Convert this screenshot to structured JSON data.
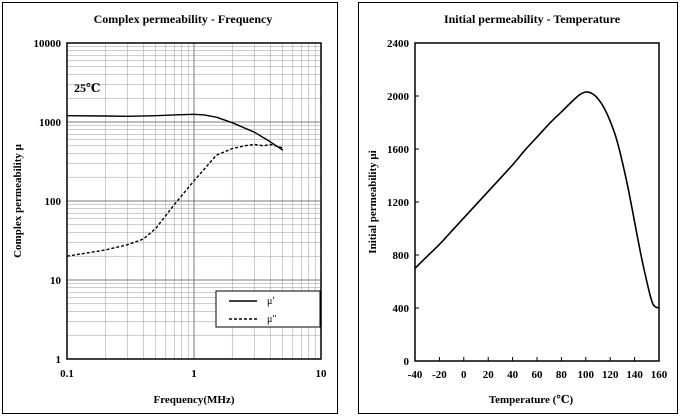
{
  "chart_data": [
    {
      "type": "line",
      "title": "Complex permeability - Frequency",
      "xlabel": "Frequency(MHz)",
      "ylabel": "Complex permeability μ",
      "x_scale": "log",
      "y_scale": "log",
      "xlim": [
        0.1,
        10
      ],
      "ylim": [
        1,
        10000
      ],
      "x_ticks": [
        "0.1",
        "1",
        "10"
      ],
      "x_tick_values": [
        0.1,
        1,
        10
      ],
      "y_ticks": [
        "1",
        "10",
        "100",
        "1000",
        "10000"
      ],
      "y_tick_values": [
        1,
        10,
        100,
        1000,
        10000
      ],
      "grid": true,
      "annotation": "25℃",
      "legend_position": "bottom-right",
      "series": [
        {
          "name": "μ′",
          "style": "solid",
          "x": [
            0.1,
            0.2,
            0.3,
            0.5,
            0.7,
            1.0,
            1.2,
            1.5,
            2.0,
            3.0,
            4.0,
            5.0
          ],
          "y": [
            1200,
            1190,
            1180,
            1200,
            1230,
            1250,
            1230,
            1150,
            980,
            740,
            560,
            440
          ]
        },
        {
          "name": "μ″",
          "style": "dashed",
          "x": [
            0.1,
            0.2,
            0.3,
            0.4,
            0.5,
            0.7,
            1.0,
            1.5,
            2.0,
            2.5,
            3.0,
            3.5,
            4.0,
            5.0
          ],
          "y": [
            20,
            24,
            28,
            33,
            45,
            90,
            180,
            380,
            460,
            500,
            520,
            500,
            520,
            470
          ]
        }
      ]
    },
    {
      "type": "line",
      "title": "Initial permeability - Temperature",
      "xlabel": "Temperature (℃)",
      "ylabel": "Initial permeability μi",
      "xlim": [
        -40,
        160
      ],
      "ylim": [
        0,
        2400
      ],
      "x_ticks": [
        "-40",
        "-20",
        "0",
        "20",
        "40",
        "60",
        "80",
        "100",
        "120",
        "140",
        "160"
      ],
      "x_tick_values": [
        -40,
        -20,
        0,
        20,
        40,
        60,
        80,
        100,
        120,
        140,
        160
      ],
      "y_ticks": [
        "0",
        "400",
        "800",
        "1200",
        "1600",
        "2000",
        "2400"
      ],
      "y_tick_values": [
        0,
        400,
        800,
        1200,
        1600,
        2000,
        2400
      ],
      "grid": false,
      "series": [
        {
          "style": "solid",
          "x": [
            -40,
            -30,
            -20,
            -10,
            0,
            10,
            20,
            30,
            40,
            50,
            60,
            70,
            80,
            90,
            95,
            100,
            105,
            110,
            115,
            120,
            125,
            130,
            135,
            140,
            145,
            150,
            155,
            160
          ],
          "y": [
            700,
            790,
            880,
            980,
            1080,
            1180,
            1280,
            1380,
            1480,
            1590,
            1690,
            1790,
            1880,
            1970,
            2010,
            2030,
            2020,
            1980,
            1910,
            1810,
            1680,
            1500,
            1290,
            1050,
            810,
            600,
            430,
            400
          ]
        }
      ]
    }
  ]
}
